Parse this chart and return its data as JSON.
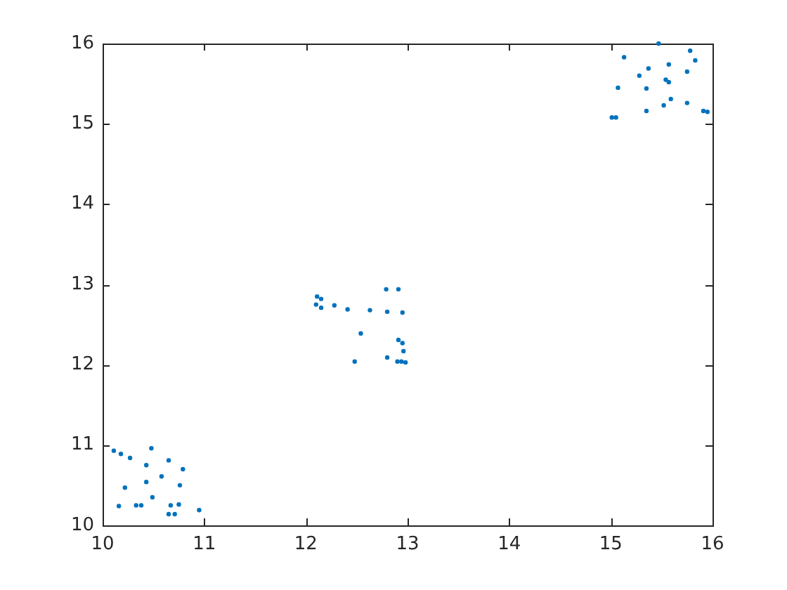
{
  "chart_data": {
    "type": "scatter",
    "color": "#0072bd",
    "marker": "circle",
    "x": [
      10.11,
      10.18,
      10.27,
      10.48,
      10.43,
      10.65,
      10.79,
      10.58,
      10.43,
      10.76,
      10.22,
      10.49,
      10.16,
      10.33,
      10.38,
      10.67,
      10.75,
      10.65,
      10.71,
      10.95,
      12.1,
      12.11,
      12.15,
      12.15,
      12.28,
      12.41,
      12.54,
      12.48,
      12.63,
      12.79,
      12.8,
      12.91,
      12.95,
      12.8,
      12.91,
      12.95,
      12.96,
      12.9,
      12.94,
      12.98,
      15.47,
      15.13,
      15.78,
      15.83,
      15.37,
      15.28,
      15.57,
      15.75,
      15.07,
      15.35,
      15.57,
      15.59,
      15.52,
      15.35,
      15.75,
      15.91,
      15.95,
      15.01,
      15.05,
      15.54
    ],
    "values": [
      10.93,
      10.89,
      10.84,
      10.96,
      10.75,
      10.81,
      10.7,
      10.61,
      10.54,
      10.5,
      10.47,
      10.35,
      10.24,
      10.25,
      10.25,
      10.25,
      10.26,
      10.14,
      10.14,
      10.19,
      12.75,
      12.85,
      12.82,
      12.71,
      12.74,
      12.69,
      12.39,
      12.04,
      12.68,
      12.94,
      12.66,
      12.94,
      12.65,
      12.09,
      12.31,
      12.27,
      12.17,
      12.04,
      12.04,
      12.03,
      16.0,
      15.83,
      15.91,
      15.79,
      15.69,
      15.6,
      15.74,
      15.65,
      15.45,
      15.44,
      15.52,
      15.31,
      15.23,
      15.16,
      15.26,
      15.16,
      15.15,
      15.08,
      15.08,
      15.55
    ],
    "xlim": [
      10,
      16
    ],
    "ylim": [
      10,
      16
    ],
    "xticks": [
      10,
      11,
      12,
      13,
      14,
      15,
      16
    ],
    "yticks": [
      10,
      11,
      12,
      13,
      14,
      15,
      16
    ]
  }
}
